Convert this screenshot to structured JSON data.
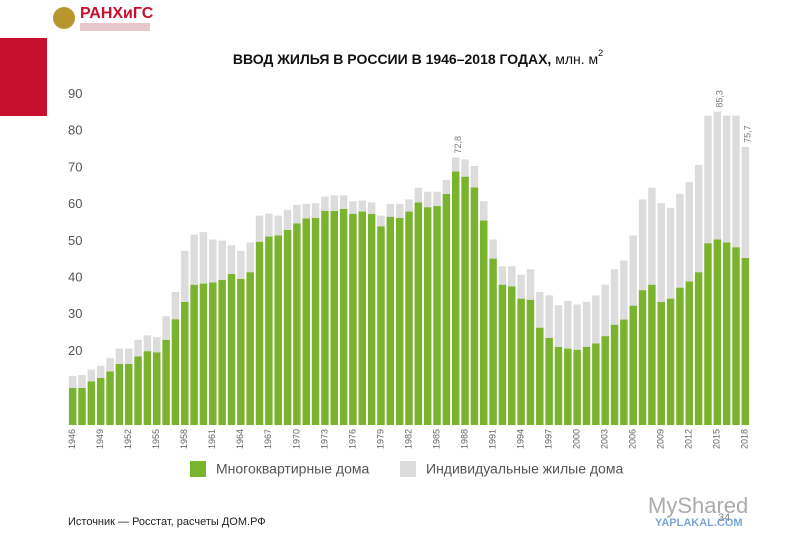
{
  "logo": {
    "text": "РАНХиГС"
  },
  "chart_data": {
    "type": "stacked_bar",
    "title": "ВВОД ЖИЛЬЯ В РОССИИ В 1946–2018 ГОДАХ,",
    "title_unit": "млн. м",
    "title_unit_sup": "2",
    "x": [
      1946,
      1947,
      1948,
      1949,
      1950,
      1951,
      1952,
      1953,
      1954,
      1955,
      1956,
      1957,
      1958,
      1959,
      1960,
      1961,
      1962,
      1963,
      1964,
      1965,
      1966,
      1967,
      1968,
      1969,
      1970,
      1971,
      1972,
      1973,
      1974,
      1975,
      1976,
      1977,
      1978,
      1979,
      1980,
      1981,
      1982,
      1983,
      1984,
      1985,
      1986,
      1987,
      1988,
      1989,
      1990,
      1991,
      1992,
      1993,
      1994,
      1995,
      1996,
      1997,
      1998,
      1999,
      2000,
      2001,
      2002,
      2003,
      2004,
      2005,
      2006,
      2007,
      2008,
      2009,
      2010,
      2011,
      2012,
      2013,
      2014,
      2015,
      2016,
      2017,
      2018
    ],
    "xlim": [
      1945.5,
      2018.5
    ],
    "xticks": [
      1946,
      1949,
      1952,
      1955,
      1958,
      1961,
      1964,
      1967,
      1970,
      1973,
      1976,
      1979,
      1982,
      1985,
      1988,
      1991,
      1994,
      1997,
      2000,
      2003,
      2006,
      2009,
      2012,
      2015,
      2018
    ],
    "ylim": [
      0,
      95
    ],
    "yticks": [
      20,
      30,
      40,
      50,
      60,
      70,
      80,
      90
    ],
    "grid": false,
    "series": [
      {
        "name": "Многоквартирные дома",
        "color": "#7ab32e",
        "values": [
          10.1,
          10.1,
          11.9,
          12.8,
          14.6,
          16.6,
          16.6,
          18.7,
          20.1,
          19.8,
          23.2,
          28.8,
          33.5,
          38.2,
          38.5,
          38.8,
          39.5,
          41.1,
          39.8,
          41.6,
          49.9,
          51.3,
          51.6,
          53.1,
          54.9,
          56.2,
          56.4,
          58.3,
          58.3,
          58.8,
          57.5,
          58.1,
          57.5,
          54.1,
          56.7,
          56.4,
          58.1,
          60.6,
          59.3,
          59.6,
          62.9,
          69.0,
          67.6,
          64.7,
          55.7,
          45.3,
          38.2,
          37.7,
          34.4,
          34.1,
          26.5,
          23.7,
          21.3,
          20.8,
          20.5,
          21.3,
          22.2,
          24.2,
          27.3,
          28.7,
          32.5,
          36.7,
          38.2,
          33.5,
          34.4,
          37.4,
          39.1,
          41.6,
          49.5,
          50.5,
          49.7,
          48.4,
          45.5
        ]
      },
      {
        "name": "Индивидуальные жилые дома",
        "color": "#dcdcdc",
        "values": [
          3.2,
          3.5,
          3.2,
          3.3,
          3.6,
          4.2,
          4.2,
          4.5,
          4.3,
          4.1,
          6.4,
          7.4,
          13.9,
          13.6,
          14.0,
          11.7,
          10.7,
          7.8,
          7.6,
          8.1,
          7.1,
          6.2,
          5.4,
          5.4,
          5.0,
          4.0,
          4.0,
          3.9,
          4.2,
          3.7,
          3.4,
          3.0,
          3.1,
          2.9,
          3.5,
          3.8,
          3.3,
          4.0,
          4.2,
          3.9,
          3.8,
          3.8,
          4.7,
          5.8,
          5.2,
          5.2,
          5.0,
          5.5,
          6.5,
          8.3,
          9.7,
          11.6,
          11.3,
          13.0,
          12.3,
          12.2,
          13.1,
          14.0,
          15.1,
          16.1,
          19.1,
          24.7,
          26.4,
          26.9,
          24.7,
          25.5,
          27.0,
          29.2,
          34.7,
          34.8,
          34.5,
          35.8,
          30.2
        ]
      }
    ],
    "annotations": [
      {
        "x": 1987,
        "y": 72.8,
        "label": "72,8"
      },
      {
        "x": 2015,
        "y": 85.3,
        "label": "85,3"
      },
      {
        "x": 2018,
        "y": 75.7,
        "label": "75,7"
      }
    ],
    "source": "Источник — Росстат, расчеты ДОМ.РФ"
  },
  "watermark": {
    "site": "MyShared",
    "page": "34",
    "site2": "YAPLAKAL.COM"
  }
}
